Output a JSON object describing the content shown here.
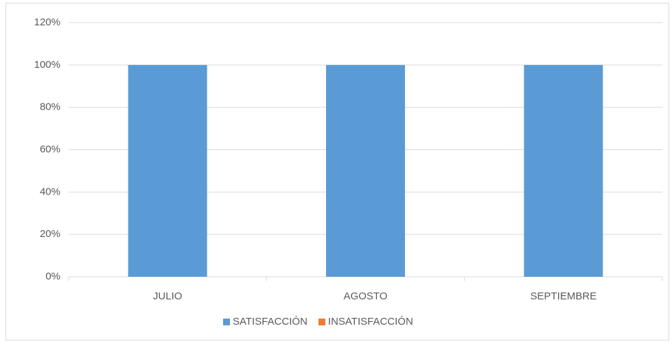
{
  "chart_data": {
    "type": "stacked_bar",
    "categories": [
      "JULIO",
      "AGOSTO",
      "SEPTIEMBRE"
    ],
    "series": [
      {
        "name": "SATISFACCIÓN",
        "color": "#5b9bd5",
        "values": [
          100,
          100,
          100
        ]
      },
      {
        "name": "INSATISFACCIÓN",
        "color": "#ed7d31",
        "values": [
          0,
          0,
          0
        ]
      }
    ],
    "ylim": [
      0,
      120
    ],
    "yticks": [
      {
        "value": 0,
        "label": "0%"
      },
      {
        "value": 20,
        "label": "20%"
      },
      {
        "value": 40,
        "label": "40%"
      },
      {
        "value": 60,
        "label": "60%"
      },
      {
        "value": 80,
        "label": "80%"
      },
      {
        "value": 100,
        "label": "100%"
      },
      {
        "value": 120,
        "label": "120%"
      }
    ],
    "grid": true,
    "legend": "bottom"
  }
}
